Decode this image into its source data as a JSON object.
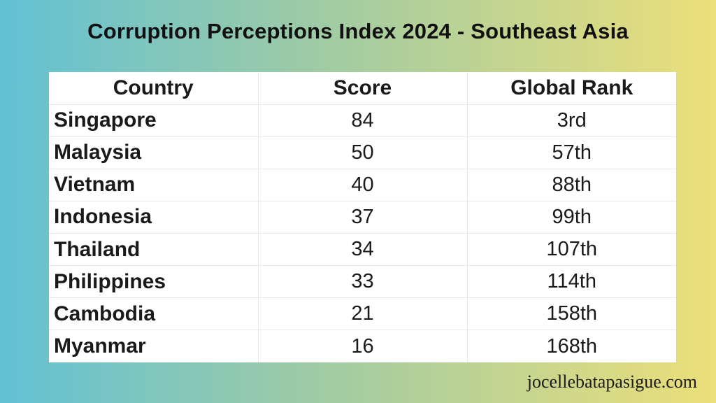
{
  "page": {
    "title": "Corruption Perceptions Index 2024 - Southeast Asia",
    "credit": "jocellebatapasigue.com"
  },
  "table": {
    "headers": {
      "country": "Country",
      "score": "Score",
      "rank": "Global Rank"
    },
    "rows": [
      {
        "country": "Singapore",
        "score": "84",
        "rank": "3rd"
      },
      {
        "country": "Malaysia",
        "score": "50",
        "rank": "57th"
      },
      {
        "country": "Vietnam",
        "score": "40",
        "rank": "88th"
      },
      {
        "country": "Indonesia",
        "score": "37",
        "rank": "99th"
      },
      {
        "country": "Thailand",
        "score": "34",
        "rank": "107th"
      },
      {
        "country": "Philippines",
        "score": "33",
        "rank": "114th"
      },
      {
        "country": "Cambodia",
        "score": "21",
        "rank": "158th"
      },
      {
        "country": "Myanmar",
        "score": "16",
        "rank": "168th"
      }
    ]
  },
  "chart_data": {
    "type": "table",
    "title": "Corruption Perceptions Index 2024 - Southeast Asia",
    "columns": [
      "Country",
      "Score",
      "Global Rank"
    ],
    "rows": [
      [
        "Singapore",
        84,
        "3rd"
      ],
      [
        "Malaysia",
        50,
        "57th"
      ],
      [
        "Vietnam",
        40,
        "88th"
      ],
      [
        "Indonesia",
        37,
        "99th"
      ],
      [
        "Thailand",
        34,
        "107th"
      ],
      [
        "Philippines",
        33,
        "114th"
      ],
      [
        "Cambodia",
        21,
        "158th"
      ],
      [
        "Myanmar",
        16,
        "168th"
      ]
    ]
  },
  "colors": {
    "gradient_left": "#62c1d4",
    "gradient_mid": "#a4cca1",
    "gradient_right": "#ecdf7a",
    "table_background": "#ffffff",
    "grid_line": "#e9e9e9",
    "text": "#141414"
  }
}
